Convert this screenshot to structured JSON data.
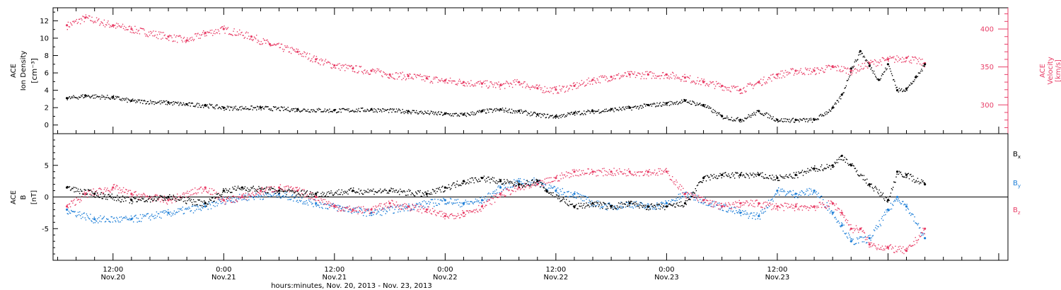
{
  "colors": {
    "black": "#000000",
    "red": "#e83e67",
    "blue": "#1e7fd8"
  },
  "chart_data": [
    {
      "type": "scatter",
      "panel": "top",
      "x_unit": "hours since 2013-11-20 00:00",
      "ylabel_left": [
        "ACE",
        "Ion Density",
        "[cm⁻³]"
      ],
      "ylabel_right": [
        "ACE",
        "Velocity",
        "[km/s]"
      ],
      "ylim_left": [
        -1,
        13.5
      ],
      "yticks_left": [
        0,
        2,
        4,
        6,
        8,
        10,
        12
      ],
      "ylim_right": [
        262,
        428
      ],
      "yticks_right": [
        300,
        350,
        400
      ],
      "series": [
        {
          "name": "Ion Density",
          "axis": "left",
          "color": "#000000",
          "points": [
            [
              7,
              3.1
            ],
            [
              9,
              3.4
            ],
            [
              12,
              3.2
            ],
            [
              14,
              2.8
            ],
            [
              18,
              2.6
            ],
            [
              20,
              2.4
            ],
            [
              22,
              2.3
            ],
            [
              24,
              2.0
            ],
            [
              28,
              2.0
            ],
            [
              32,
              1.8
            ],
            [
              36,
              1.7
            ],
            [
              40,
              1.8
            ],
            [
              44,
              1.6
            ],
            [
              48,
              1.3
            ],
            [
              50,
              1.2
            ],
            [
              52,
              1.6
            ],
            [
              54,
              1.8
            ],
            [
              56,
              1.6
            ],
            [
              58,
              1.2
            ],
            [
              60,
              1.0
            ],
            [
              62,
              1.4
            ],
            [
              64,
              1.6
            ],
            [
              66,
              1.8
            ],
            [
              68,
              2.0
            ],
            [
              70,
              2.3
            ],
            [
              72,
              2.5
            ],
            [
              74,
              2.8
            ],
            [
              76,
              2.3
            ],
            [
              78,
              1.0
            ],
            [
              80,
              0.6
            ],
            [
              82,
              1.6
            ],
            [
              84,
              0.6
            ],
            [
              86,
              0.6
            ],
            [
              88,
              0.6
            ],
            [
              90,
              2.0
            ],
            [
              91,
              3.5
            ],
            [
              92,
              6.5
            ],
            [
              93,
              8.5
            ],
            [
              94,
              6.8
            ],
            [
              95,
              5.2
            ],
            [
              96,
              7.0
            ],
            [
              97,
              4.0
            ],
            [
              98,
              4.2
            ],
            [
              99,
              5.5
            ],
            [
              100,
              7.0
            ]
          ]
        },
        {
          "name": "Velocity",
          "axis": "right",
          "color": "#e83e67",
          "points": [
            [
              7,
              405
            ],
            [
              9,
              415
            ],
            [
              12,
              405
            ],
            [
              14,
              400
            ],
            [
              18,
              390
            ],
            [
              20,
              385
            ],
            [
              22,
              395
            ],
            [
              24,
              400
            ],
            [
              27,
              390
            ],
            [
              29,
              380
            ],
            [
              32,
              370
            ],
            [
              34,
              360
            ],
            [
              36,
              352
            ],
            [
              38,
              348
            ],
            [
              40,
              345
            ],
            [
              42,
              340
            ],
            [
              44,
              338
            ],
            [
              46,
              335
            ],
            [
              48,
              332
            ],
            [
              50,
              330
            ],
            [
              52,
              328
            ],
            [
              54,
              326
            ],
            [
              56,
              330
            ],
            [
              58,
              322
            ],
            [
              60,
              320
            ],
            [
              62,
              325
            ],
            [
              64,
              333
            ],
            [
              66,
              337
            ],
            [
              68,
              340
            ],
            [
              70,
              340
            ],
            [
              72,
              340
            ],
            [
              74,
              336
            ],
            [
              76,
              330
            ],
            [
              78,
              325
            ],
            [
              80,
              320
            ],
            [
              82,
              330
            ],
            [
              84,
              340
            ],
            [
              86,
              345
            ],
            [
              88,
              345
            ],
            [
              90,
              350
            ],
            [
              92,
              345
            ],
            [
              94,
              355
            ],
            [
              96,
              360
            ],
            [
              98,
              362
            ],
            [
              100,
              355
            ]
          ]
        }
      ]
    },
    {
      "type": "scatter",
      "panel": "bottom",
      "x_unit": "hours since 2013-11-20 00:00",
      "ylabel": [
        "ACE",
        "B",
        "[nT]"
      ],
      "ylim": [
        -10,
        10
      ],
      "yticks": [
        -5,
        0,
        5
      ],
      "zero_line": true,
      "series": [
        {
          "name": "B_x",
          "label_main": "B",
          "label_sub": "x",
          "color": "#000000",
          "points": [
            [
              7,
              1.5
            ],
            [
              10,
              0.5
            ],
            [
              14,
              -0.5
            ],
            [
              18,
              0.0
            ],
            [
              22,
              -1.0
            ],
            [
              24,
              1.0
            ],
            [
              26,
              1.5
            ],
            [
              30,
              1.0
            ],
            [
              34,
              0.5
            ],
            [
              38,
              1.0
            ],
            [
              42,
              1.0
            ],
            [
              46,
              0.5
            ],
            [
              48,
              1.5
            ],
            [
              50,
              2.5
            ],
            [
              52,
              3.0
            ],
            [
              54,
              2.5
            ],
            [
              56,
              2.0
            ],
            [
              58,
              2.5
            ],
            [
              59,
              1.0
            ],
            [
              62,
              -1.5
            ],
            [
              64,
              -1.0
            ],
            [
              66,
              -1.5
            ],
            [
              68,
              -1.0
            ],
            [
              70,
              -1.5
            ],
            [
              72,
              -1.5
            ],
            [
              74,
              -1.0
            ],
            [
              76,
              3.0
            ],
            [
              78,
              3.5
            ],
            [
              80,
              3.5
            ],
            [
              82,
              3.5
            ],
            [
              84,
              3.0
            ],
            [
              86,
              3.5
            ],
            [
              88,
              4.5
            ],
            [
              90,
              5.0
            ],
            [
              91,
              6.5
            ],
            [
              92,
              5.0
            ],
            [
              94,
              2.0
            ],
            [
              96,
              -0.5
            ],
            [
              97,
              4.0
            ],
            [
              98,
              3.5
            ],
            [
              100,
              2.0
            ]
          ]
        },
        {
          "name": "B_y",
          "label_main": "B",
          "label_sub": "y",
          "color": "#1e7fd8",
          "points": [
            [
              7,
              -2.0
            ],
            [
              10,
              -3.5
            ],
            [
              14,
              -3.5
            ],
            [
              18,
              -2.5
            ],
            [
              22,
              -1.5
            ],
            [
              24,
              -0.5
            ],
            [
              26,
              0.0
            ],
            [
              30,
              0.5
            ],
            [
              34,
              -1.0
            ],
            [
              36,
              -1.5
            ],
            [
              40,
              -2.5
            ],
            [
              44,
              -1.5
            ],
            [
              48,
              -0.5
            ],
            [
              50,
              -1.0
            ],
            [
              52,
              -0.5
            ],
            [
              54,
              1.5
            ],
            [
              56,
              2.5
            ],
            [
              58,
              2.5
            ],
            [
              60,
              1.0
            ],
            [
              62,
              0.5
            ],
            [
              64,
              -1.0
            ],
            [
              66,
              -1.5
            ],
            [
              68,
              -1.0
            ],
            [
              70,
              -1.5
            ],
            [
              72,
              -1.0
            ],
            [
              74,
              0.5
            ],
            [
              76,
              -0.5
            ],
            [
              78,
              -1.5
            ],
            [
              80,
              -2.5
            ],
            [
              82,
              -3.0
            ],
            [
              84,
              1.0
            ],
            [
              86,
              0.5
            ],
            [
              88,
              1.0
            ],
            [
              90,
              -2.5
            ],
            [
              91,
              -4.5
            ],
            [
              92,
              -7.0
            ],
            [
              94,
              -6.5
            ],
            [
              96,
              -2.0
            ],
            [
              97,
              0.0
            ],
            [
              98,
              -1.5
            ],
            [
              100,
              -6.5
            ]
          ]
        },
        {
          "name": "B_z",
          "label_main": "B",
          "label_sub": "z",
          "color": "#e83e67",
          "points": [
            [
              7,
              -1.5
            ],
            [
              9,
              0.5
            ],
            [
              12,
              1.5
            ],
            [
              14,
              0.5
            ],
            [
              18,
              -0.5
            ],
            [
              22,
              1.5
            ],
            [
              24,
              -0.5
            ],
            [
              26,
              0.0
            ],
            [
              28,
              1.0
            ],
            [
              30,
              1.5
            ],
            [
              32,
              1.0
            ],
            [
              34,
              0.0
            ],
            [
              36,
              -1.5
            ],
            [
              38,
              -2.0
            ],
            [
              40,
              -2.0
            ],
            [
              42,
              -1.0
            ],
            [
              44,
              -1.5
            ],
            [
              46,
              -2.0
            ],
            [
              48,
              -3.0
            ],
            [
              50,
              -2.5
            ],
            [
              52,
              -1.5
            ],
            [
              54,
              0.5
            ],
            [
              56,
              1.5
            ],
            [
              58,
              2.0
            ],
            [
              60,
              3.0
            ],
            [
              62,
              4.0
            ],
            [
              64,
              4.0
            ],
            [
              66,
              4.0
            ],
            [
              68,
              4.0
            ],
            [
              70,
              4.0
            ],
            [
              72,
              4.0
            ],
            [
              74,
              0.5
            ],
            [
              76,
              -0.5
            ],
            [
              78,
              -1.5
            ],
            [
              80,
              -1.0
            ],
            [
              82,
              -1.0
            ],
            [
              84,
              -1.5
            ],
            [
              86,
              -1.5
            ],
            [
              88,
              -1.5
            ],
            [
              90,
              -1.0
            ],
            [
              91,
              -2.5
            ],
            [
              92,
              -5.0
            ],
            [
              93,
              -5.0
            ],
            [
              94,
              -7.5
            ],
            [
              96,
              -8.0
            ],
            [
              98,
              -8.5
            ],
            [
              100,
              -5.0
            ]
          ]
        }
      ]
    }
  ],
  "x_axis": {
    "range_hours": [
      5.5,
      109
    ],
    "ticks": [
      {
        "h": 12,
        "time": "12:00",
        "date": "Nov.20"
      },
      {
        "h": 24,
        "time": "0:00",
        "date": "Nov.21"
      },
      {
        "h": 36,
        "time": "12:00",
        "date": "Nov.21"
      },
      {
        "h": 48,
        "time": "0:00",
        "date": "Nov.22"
      },
      {
        "h": 60,
        "time": "12:00",
        "date": "Nov.22"
      },
      {
        "h": 72,
        "time": "0:00",
        "date": "Nov.23"
      },
      {
        "h": 84,
        "time": "12:00",
        "date": "Nov.23"
      }
    ],
    "xlabel": "hours:minutes, Nov. 20, 2013 - Nov. 23, 2013"
  }
}
